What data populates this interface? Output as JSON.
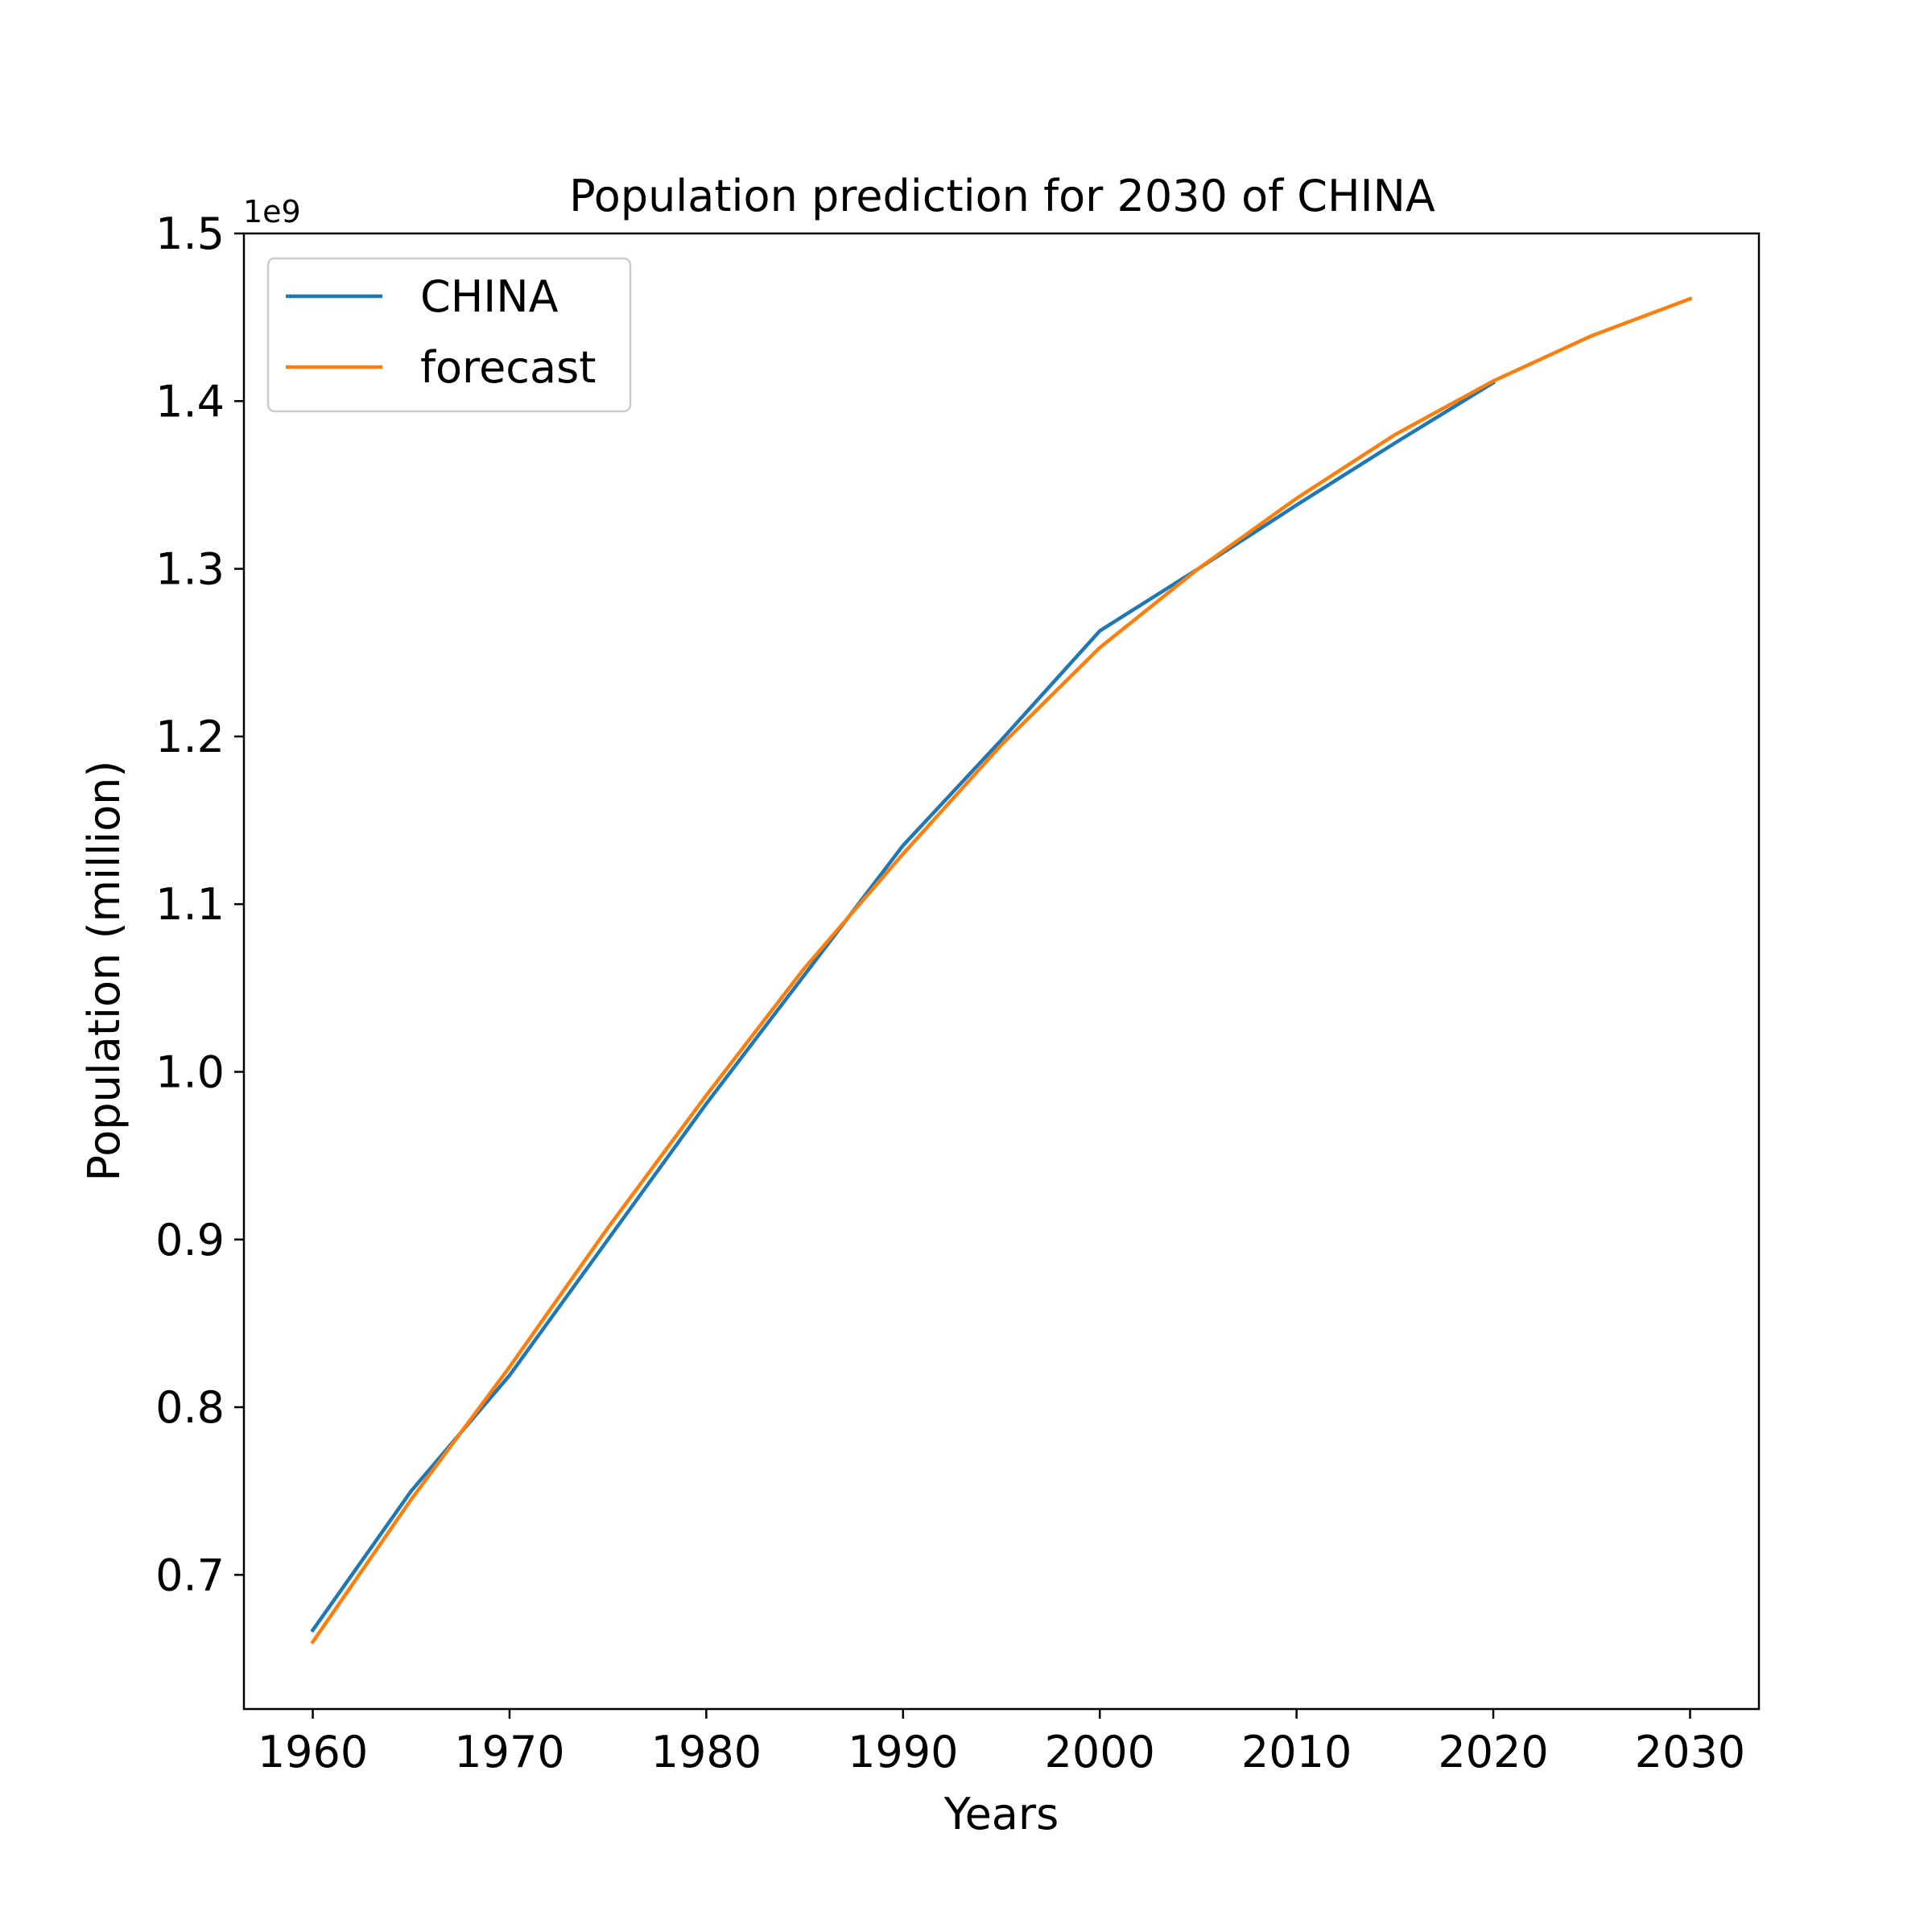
{
  "chart_data": {
    "type": "line",
    "title": "Population prediction for 2030 of CHINA",
    "xlabel": "Years",
    "ylabel": "Population (million)",
    "y_offset_label": "1e9",
    "xlim": [
      1956.5,
      2033.5
    ],
    "ylim": [
      0.62,
      1.5
    ],
    "x_ticks": [
      1960,
      1970,
      1980,
      1990,
      2000,
      2010,
      2020,
      2030
    ],
    "x_tick_labels": [
      "1960",
      "1970",
      "1980",
      "1990",
      "2000",
      "2010",
      "2020",
      "2030"
    ],
    "y_ticks": [
      0.7,
      0.8,
      0.9,
      1.0,
      1.1,
      1.2,
      1.3,
      1.4,
      1.5
    ],
    "y_tick_labels": [
      "0.7",
      "0.8",
      "0.9",
      "1.0",
      "1.1",
      "1.2",
      "1.3",
      "1.4",
      "1.5"
    ],
    "grid": false,
    "legend_position": "top-left",
    "series": [
      {
        "name": "CHINA",
        "color": "#1f77b4",
        "x": [
          1960,
          1965,
          1970,
          1975,
          1980,
          1985,
          1990,
          1995,
          2000,
          2005,
          2010,
          2015,
          2020
        ],
        "y": [
          0.667,
          0.75,
          0.819,
          0.9,
          0.981,
          1.058,
          1.135,
          1.198,
          1.263,
          1.3,
          1.338,
          1.375,
          1.411
        ]
      },
      {
        "name": "forecast",
        "color": "#ff7f0e",
        "x": [
          1960,
          1965,
          1970,
          1975,
          1980,
          1985,
          1990,
          1995,
          2000,
          2005,
          2010,
          2015,
          2020,
          2025,
          2030
        ],
        "y": [
          0.66,
          0.745,
          0.824,
          0.907,
          0.986,
          1.062,
          1.13,
          1.195,
          1.253,
          1.3,
          1.342,
          1.38,
          1.412,
          1.439,
          1.461
        ]
      }
    ]
  }
}
